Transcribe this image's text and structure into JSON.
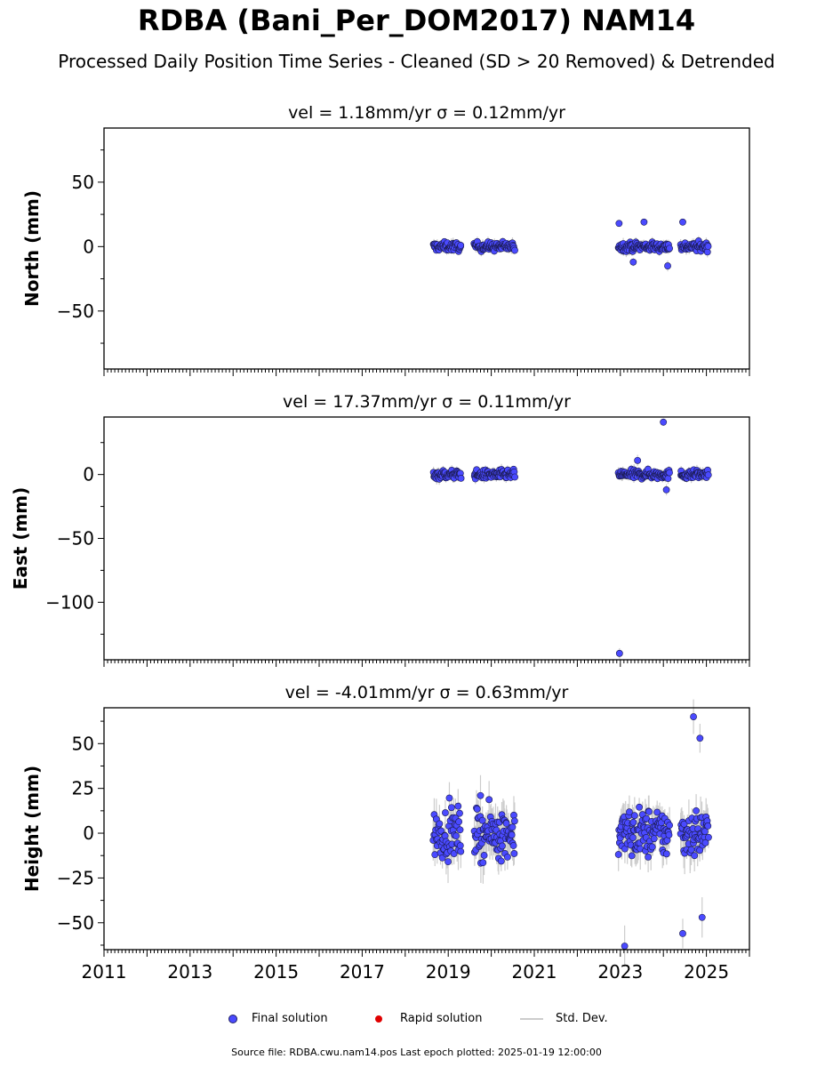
{
  "title": "RDBA (Bani_Per_DOM2017) NAM14",
  "subtitle": "Processed Daily Position Time Series - Cleaned (SD > 20 Removed) & Detrended",
  "footer": "Source file: RDBA.cwu.nam14.pos  Last epoch plotted: 2025-01-19 12:00:00",
  "legend": {
    "final": "Final solution",
    "rapid": "Rapid solution",
    "std": "Std. Dev."
  },
  "colors": {
    "final": "#4a4aff",
    "rapid": "#e00000",
    "std": "#cccccc"
  },
  "chart_data": [
    {
      "type": "scatter",
      "title": "vel = 1.18mm/yr   σ = 0.12mm/yr",
      "ylabel": "North (mm)",
      "xlim": [
        2011,
        2026
      ],
      "ylim": [
        -95,
        92
      ],
      "yticks": [
        -50,
        0,
        50
      ],
      "xticks": [
        2011,
        2013,
        2015,
        2017,
        2019,
        2021,
        2023,
        2025
      ],
      "show_xtick_labels": false,
      "segments": [
        [
          2018.65,
          2019.3
        ],
        [
          2019.6,
          2020.55
        ],
        [
          2022.95,
          2024.15
        ],
        [
          2024.4,
          2025.05
        ]
      ],
      "spread": 3,
      "sd": 3,
      "outliers": [
        [
          2022.97,
          18
        ],
        [
          2023.3,
          -12
        ],
        [
          2023.55,
          19
        ],
        [
          2024.1,
          -15
        ],
        [
          2024.45,
          19
        ]
      ]
    },
    {
      "type": "scatter",
      "title": "vel = 17.37mm/yr   σ = 0.11mm/yr",
      "ylabel": "East (mm)",
      "xlim": [
        2011,
        2026
      ],
      "ylim": [
        -145,
        45
      ],
      "yticks": [
        -100,
        -50,
        0
      ],
      "xticks": [
        2011,
        2013,
        2015,
        2017,
        2019,
        2021,
        2023,
        2025
      ],
      "show_xtick_labels": false,
      "segments": [
        [
          2018.65,
          2019.3
        ],
        [
          2019.6,
          2020.55
        ],
        [
          2022.95,
          2024.15
        ],
        [
          2024.4,
          2025.05
        ]
      ],
      "spread": 3,
      "sd": 3,
      "outliers": [
        [
          2024.0,
          41
        ],
        [
          2022.98,
          -140
        ],
        [
          2023.4,
          11
        ],
        [
          2024.07,
          -12
        ]
      ]
    },
    {
      "type": "scatter",
      "title": "vel = -4.01mm/yr   σ = 0.63mm/yr",
      "ylabel": "Height (mm)",
      "xlim": [
        2011,
        2026
      ],
      "ylim": [
        -65,
        70
      ],
      "yticks": [
        -50,
        -25,
        0,
        25,
        50
      ],
      "xticks": [
        2011,
        2013,
        2015,
        2017,
        2019,
        2021,
        2023,
        2025
      ],
      "show_xtick_labels": true,
      "segments": [
        [
          2018.65,
          2019.3
        ],
        [
          2019.6,
          2020.55
        ],
        [
          2022.95,
          2024.15
        ],
        [
          2024.4,
          2025.05
        ]
      ],
      "spread": 12,
      "sd": 8,
      "outliers": [
        [
          2024.7,
          65
        ],
        [
          2024.85,
          53
        ],
        [
          2023.1,
          -63
        ],
        [
          2024.45,
          -56
        ],
        [
          2019.75,
          21
        ],
        [
          2024.9,
          -47
        ]
      ]
    }
  ]
}
